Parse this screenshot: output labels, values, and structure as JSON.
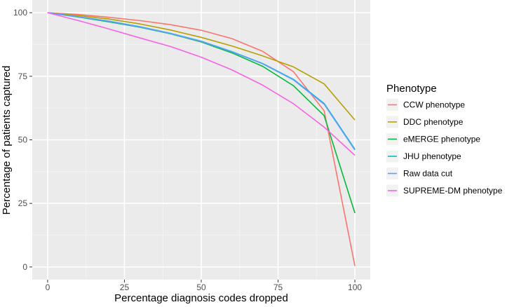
{
  "chart_data": {
    "type": "line",
    "title": "",
    "xlabel": "Percentage diagnosis codes dropped",
    "ylabel": "Percentage of patients captured",
    "xlim": [
      -5,
      105
    ],
    "ylim": [
      -5,
      105
    ],
    "x_ticks": [
      0,
      25,
      50,
      75,
      100
    ],
    "y_ticks": [
      0,
      25,
      50,
      75,
      100
    ],
    "x_tick_labels": [
      "0",
      "25",
      "50",
      "75",
      "100"
    ],
    "y_tick_labels": [
      "0",
      "25",
      "50",
      "75",
      "100"
    ],
    "grid": true,
    "legend_title": "Phenotype",
    "legend_position": "right",
    "x": [
      0,
      10,
      20,
      30,
      40,
      50,
      60,
      70,
      80,
      90,
      100
    ],
    "series": [
      {
        "name": "CCW phenotype",
        "color": "#F8766D",
        "values": [
          100,
          99.3,
          98.2,
          96.9,
          95.3,
          93.1,
          89.8,
          84.8,
          76.8,
          61.4,
          0.4
        ]
      },
      {
        "name": "DDC phenotype",
        "color": "#B79F00",
        "values": [
          100,
          98.9,
          97.5,
          95.6,
          93.2,
          90.3,
          86.9,
          83.0,
          78.7,
          72.0,
          57.8
        ]
      },
      {
        "name": "eMERGE phenotype",
        "color": "#00BA38",
        "values": [
          100,
          98.3,
          96.4,
          94.3,
          91.7,
          88.5,
          84.2,
          78.9,
          71.3,
          59.5,
          21.2
        ]
      },
      {
        "name": "JHU phenotype",
        "color": "#00BFC4",
        "values": [
          100,
          98.4,
          96.7,
          94.5,
          91.9,
          88.8,
          84.7,
          80.0,
          73.8,
          64.3,
          46.3
        ]
      },
      {
        "name": "Raw data cut",
        "color": "#619CFF",
        "values": [
          100,
          98.4,
          96.6,
          94.4,
          91.8,
          88.7,
          84.6,
          79.9,
          73.6,
          64.0,
          46.0
        ]
      },
      {
        "name": "SUPREME-DM phenotype",
        "color": "#F564E3",
        "values": [
          100,
          96.9,
          93.6,
          90.1,
          86.7,
          82.5,
          77.5,
          71.5,
          64.2,
          55.0,
          43.9
        ]
      }
    ]
  }
}
